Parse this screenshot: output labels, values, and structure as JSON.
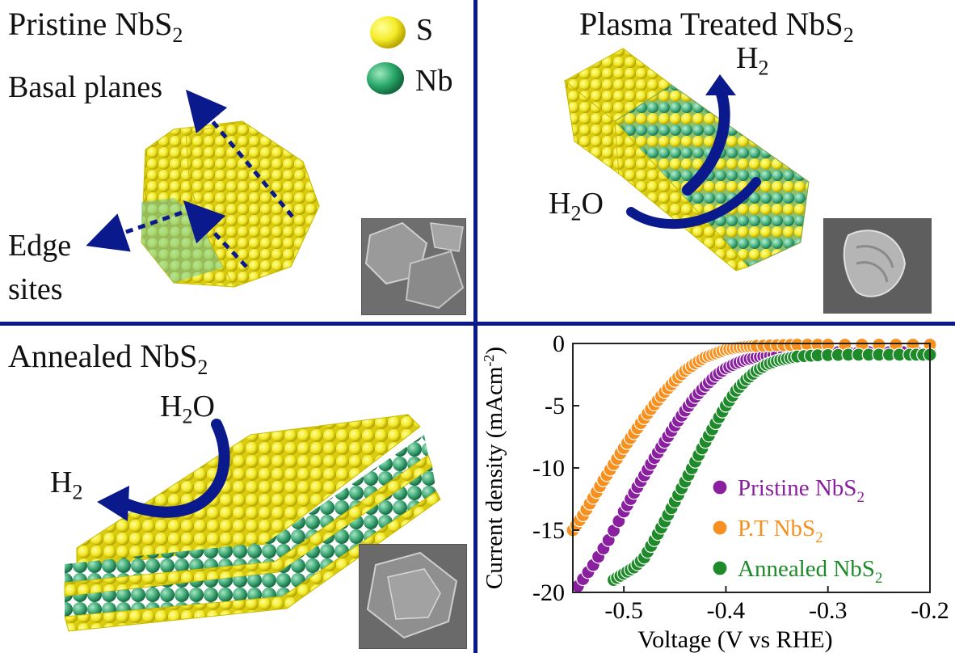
{
  "panels": {
    "pristine": {
      "title_main": "Pristine NbS",
      "title_sub": "2",
      "basal_label": "Basal planes",
      "edge_label_line1": "Edge",
      "edge_label_line2": "sites"
    },
    "legend": {
      "s_label": "S",
      "nb_label": "Nb",
      "s_color": "#f5ec2a",
      "nb_color": "#2aa86a"
    },
    "plasma": {
      "title_main": "Plasma Treated NbS",
      "title_sub": "2",
      "h2_main": "H",
      "h2_sub": "2",
      "h2o_main": "H",
      "h2o_sub": "2",
      "h2o_tail": "O"
    },
    "annealed": {
      "title_main": "Annealed NbS",
      "title_sub": "2",
      "h2o_main": "H",
      "h2o_sub": "2",
      "h2o_tail": "O",
      "h2_main": "H",
      "h2_sub": "2"
    }
  },
  "colors": {
    "divider": "#0a1a8c",
    "arrow": "#0a1a8c",
    "sulfur": "#f5ec2a",
    "niobium": "#2aa86a"
  },
  "chart_data": {
    "type": "scatter",
    "title": "",
    "xlabel": "Voltage (V vs RHE)",
    "ylabel_main": "Current density (mAcm",
    "ylabel_sup": "-2",
    "ylabel_close": ")",
    "xlim": [
      -0.55,
      -0.2
    ],
    "ylim": [
      -20,
      0
    ],
    "xticks": [
      -0.5,
      -0.4,
      -0.3,
      -0.2
    ],
    "xtick_labels": [
      "-0.5",
      "-0.4",
      "-0.3",
      "-0.2"
    ],
    "yticks": [
      0,
      -5,
      -10,
      -15,
      -20
    ],
    "ytick_labels": [
      "0",
      "-5",
      "-10",
      "-15",
      "-20"
    ],
    "series": [
      {
        "name": "Pristine NbS2",
        "legend_main": "Pristine NbS",
        "legend_sub": "2",
        "color": "#8a1fa0",
        "x": [
          -0.545,
          -0.53,
          -0.515,
          -0.5,
          -0.49,
          -0.48,
          -0.47,
          -0.46,
          -0.45,
          -0.44,
          -0.43,
          -0.42,
          -0.41,
          -0.4,
          -0.39,
          -0.38,
          -0.37,
          -0.36,
          -0.35,
          -0.33,
          -0.3,
          -0.27,
          -0.24,
          -0.2
        ],
        "y": [
          -19.5,
          -17.8,
          -15.8,
          -13.5,
          -12.0,
          -10.6,
          -9.2,
          -7.9,
          -6.6,
          -5.4,
          -4.3,
          -3.4,
          -2.6,
          -2.0,
          -1.6,
          -1.3,
          -1.1,
          -1.0,
          -0.9,
          -0.8,
          -0.7,
          -0.7,
          -0.7,
          -0.7
        ]
      },
      {
        "name": "P.T NbS2",
        "legend_main": "P.T NbS",
        "legend_sub": "2",
        "color": "#f7901e",
        "x": [
          -0.55,
          -0.54,
          -0.53,
          -0.52,
          -0.51,
          -0.5,
          -0.49,
          -0.48,
          -0.47,
          -0.46,
          -0.45,
          -0.44,
          -0.43,
          -0.42,
          -0.41,
          -0.4,
          -0.39,
          -0.38,
          -0.37,
          -0.35,
          -0.33,
          -0.3,
          -0.25,
          -0.2
        ],
        "y": [
          -15.0,
          -13.8,
          -12.4,
          -11.0,
          -9.7,
          -8.4,
          -7.2,
          -6.0,
          -4.9,
          -3.9,
          -3.0,
          -2.2,
          -1.6,
          -1.1,
          -0.8,
          -0.5,
          -0.35,
          -0.25,
          -0.2,
          -0.15,
          -0.1,
          -0.1,
          -0.1,
          -0.1
        ]
      },
      {
        "name": "Annealed NbS2",
        "legend_main": "Annealed NbS",
        "legend_sub": "2",
        "color": "#1e8a2a",
        "x": [
          -0.51,
          -0.5,
          -0.49,
          -0.48,
          -0.47,
          -0.46,
          -0.45,
          -0.44,
          -0.43,
          -0.42,
          -0.41,
          -0.4,
          -0.39,
          -0.38,
          -0.37,
          -0.36,
          -0.35,
          -0.34,
          -0.33,
          -0.31,
          -0.28,
          -0.25,
          -0.22,
          -0.2
        ],
        "y": [
          -19.0,
          -18.5,
          -18.0,
          -17.2,
          -15.8,
          -14.3,
          -12.7,
          -11.1,
          -9.5,
          -7.9,
          -6.4,
          -5.0,
          -3.8,
          -2.9,
          -2.2,
          -1.7,
          -1.4,
          -1.2,
          -1.05,
          -0.95,
          -0.9,
          -0.9,
          -0.9,
          -0.9
        ]
      }
    ]
  }
}
